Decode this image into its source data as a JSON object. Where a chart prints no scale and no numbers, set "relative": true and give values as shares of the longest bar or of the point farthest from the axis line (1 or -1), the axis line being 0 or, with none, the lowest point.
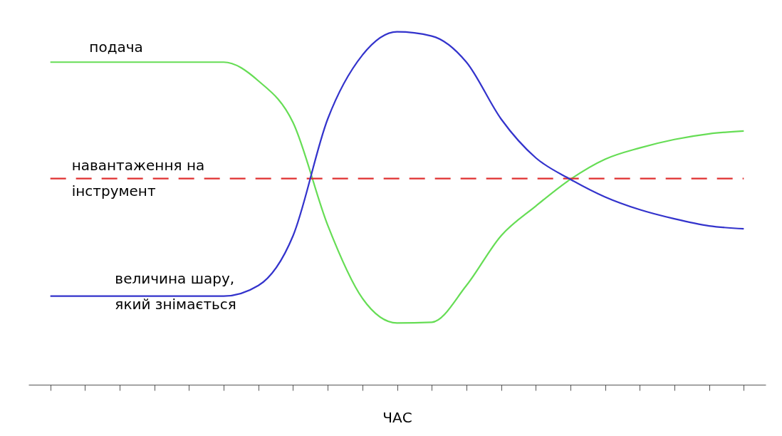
{
  "chart_data": {
    "type": "line",
    "relative": true,
    "xlabel": "ЧАС",
    "categories": [
      null,
      null,
      null,
      null,
      null,
      null,
      null,
      null,
      null,
      null,
      null,
      null,
      null,
      null,
      null,
      null,
      null,
      null,
      null,
      null,
      null
    ],
    "series": [
      {
        "name": "подача",
        "color": "#66dd55",
        "line_style": "solid",
        "values": [
          0.914,
          0.914,
          0.914,
          0.914,
          0.914,
          0.914,
          0.861,
          0.743,
          0.452,
          0.245,
          0.175,
          0.177,
          0.281,
          0.422,
          0.506,
          0.582,
          0.639,
          0.671,
          0.695,
          0.711,
          0.719
        ]
      },
      {
        "name": "навантаження на інструмент",
        "color": "#e03030",
        "line_style": "dashed",
        "values": [
          0.584,
          0.584,
          0.584,
          0.584,
          0.584,
          0.584,
          0.584,
          0.584,
          0.584,
          0.584,
          0.584,
          0.584,
          0.584,
          0.584,
          0.584,
          0.584,
          0.584,
          0.584,
          0.584,
          0.584,
          0.584
        ]
      },
      {
        "name": "величина шару, який знімається",
        "color": "#3333cc",
        "line_style": "solid",
        "values": [
          0.251,
          0.251,
          0.251,
          0.251,
          0.251,
          0.251,
          0.281,
          0.422,
          0.753,
          0.934,
          1,
          0.988,
          0.914,
          0.753,
          0.643,
          0.582,
          0.532,
          0.496,
          0.47,
          0.45,
          0.442
        ]
      }
    ]
  }
}
